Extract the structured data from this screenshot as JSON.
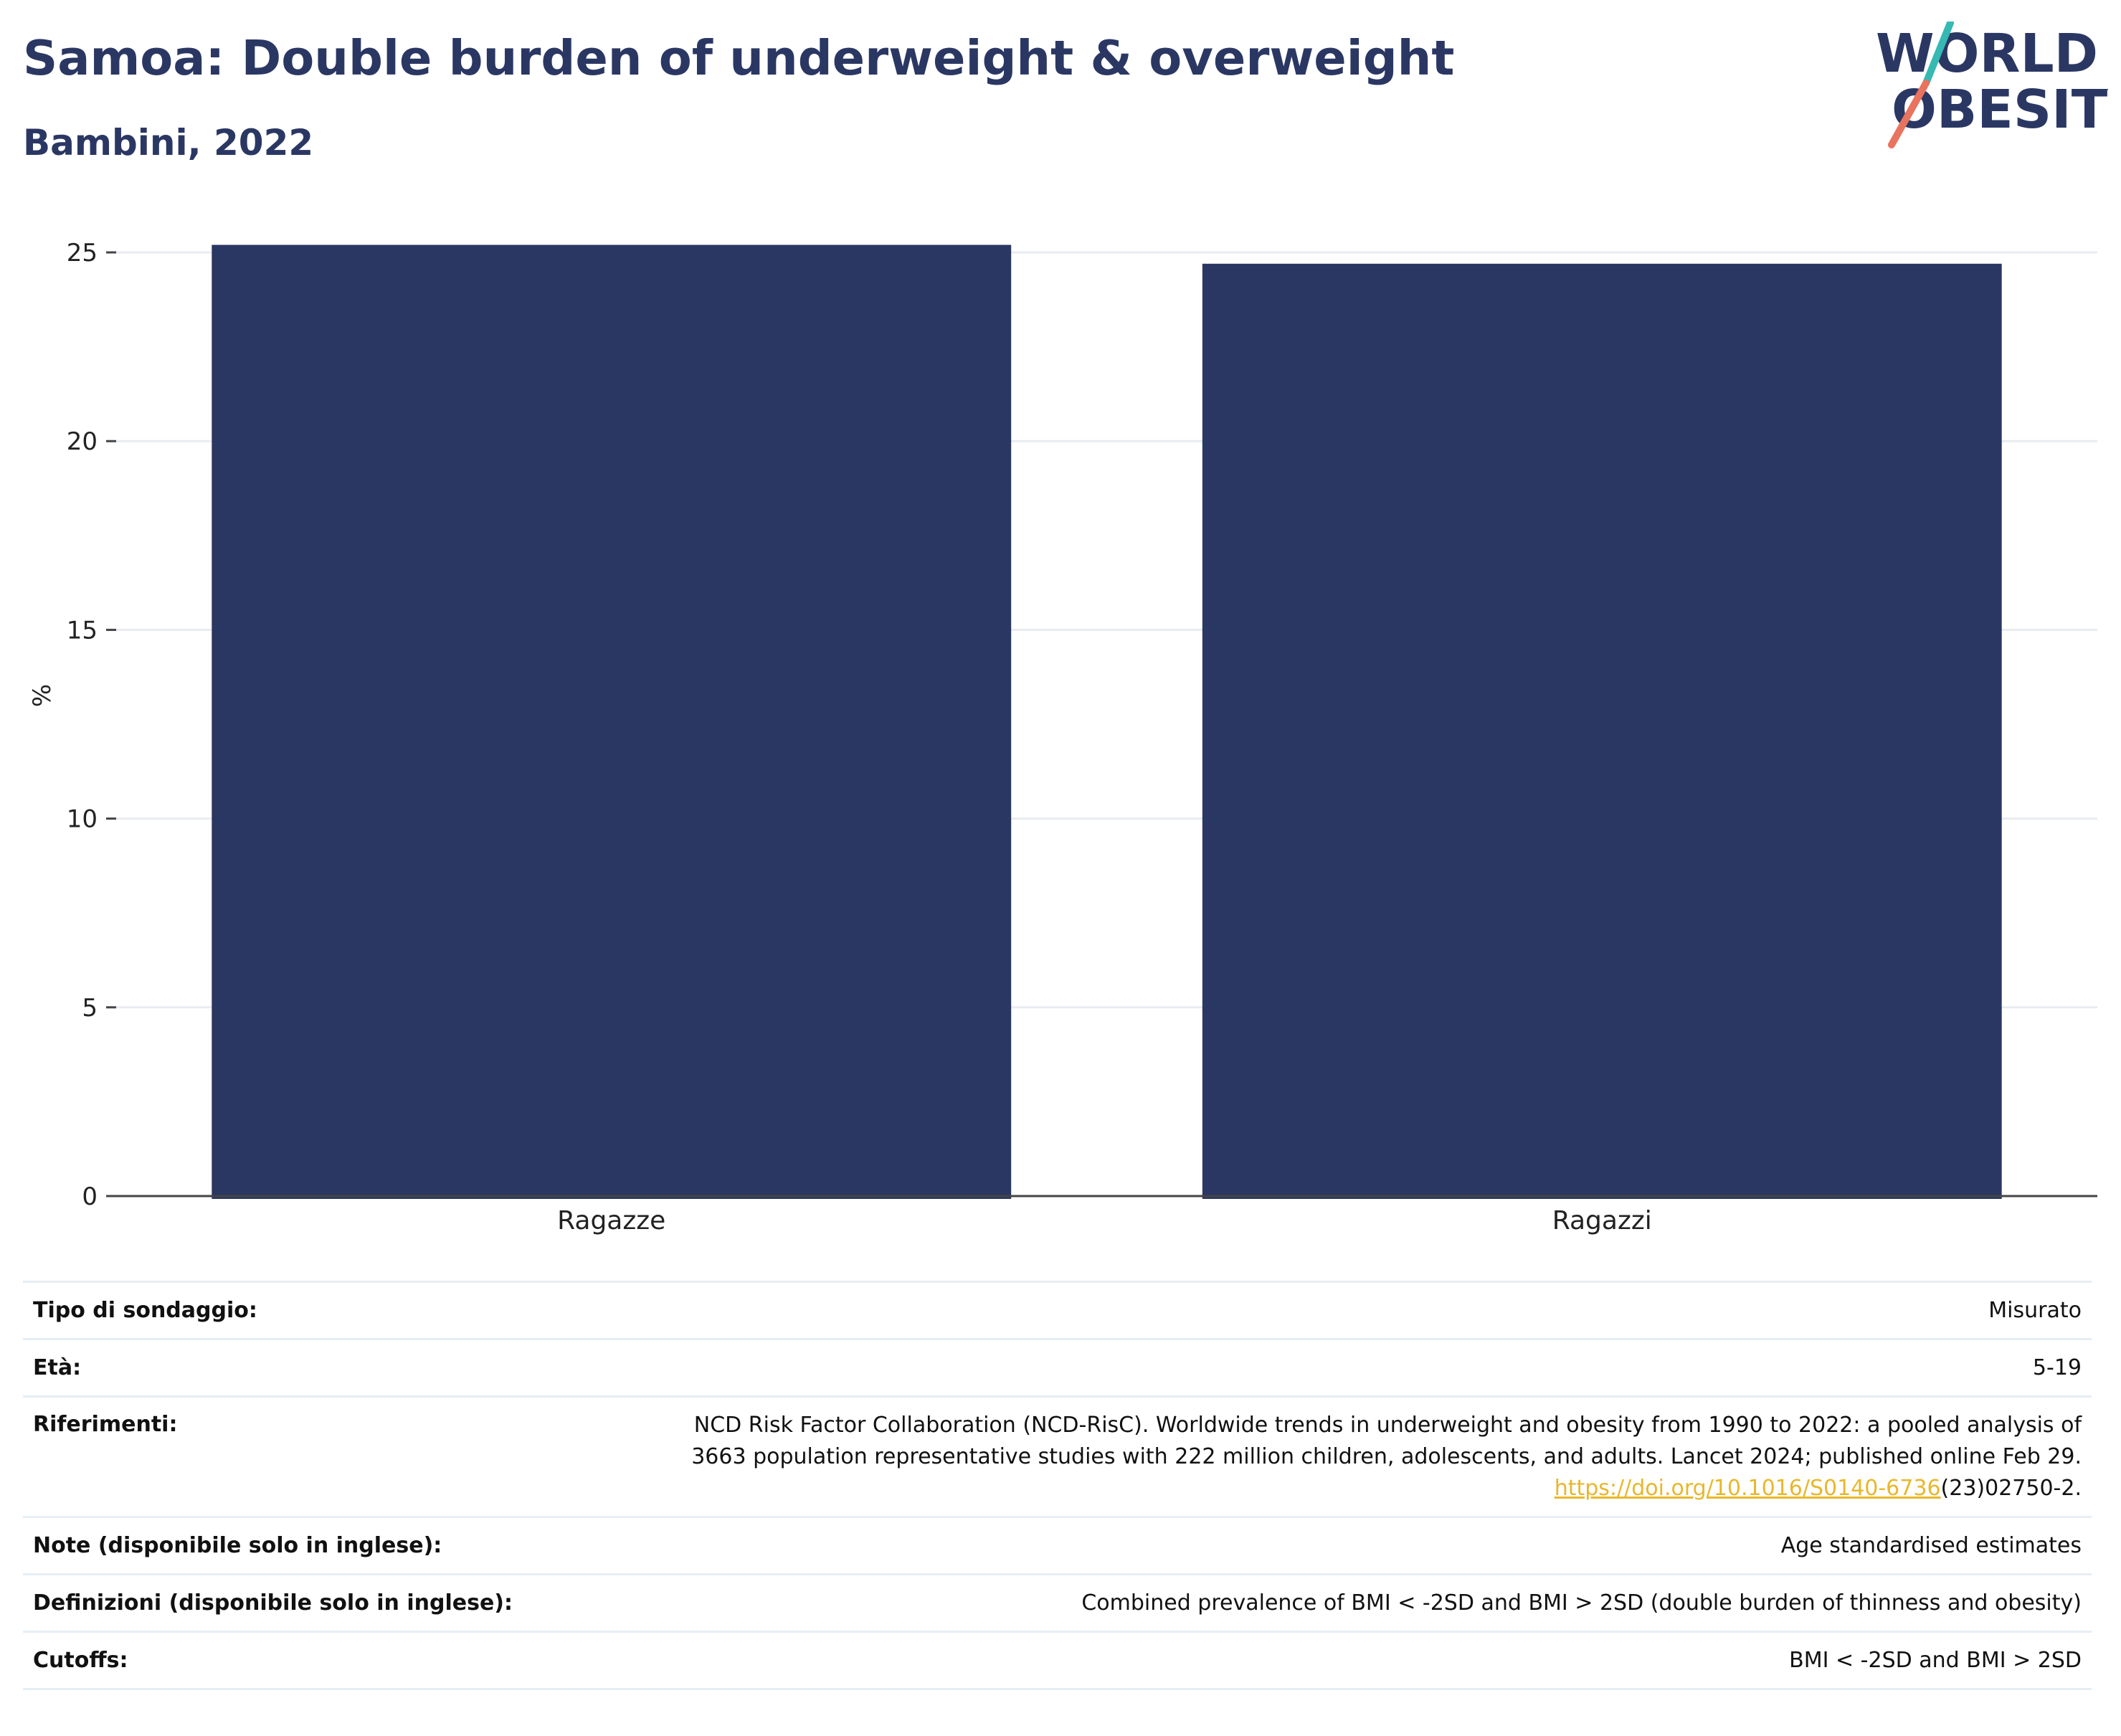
{
  "header": {
    "title": "Samoa: Double burden of underweight & overweight",
    "subtitle": "Bambini, 2022"
  },
  "logo": {
    "line1": "WORLD",
    "line2": "OBESITY",
    "colors": {
      "text": "#2b3763",
      "slash_top": "#36b9b3",
      "slash_bottom": "#e8735e"
    }
  },
  "chart_data": {
    "type": "bar",
    "categories": [
      "Ragazze",
      "Ragazzi"
    ],
    "values": [
      25.2,
      24.7
    ],
    "ylabel": "%",
    "ylim": [
      0,
      25
    ],
    "yticks": [
      0,
      5,
      10,
      15,
      20,
      25
    ],
    "grid": true,
    "bar_color": "#2b3763"
  },
  "meta": {
    "rows": [
      {
        "key": "Tipo di sondaggio:",
        "value": "Misurato"
      },
      {
        "key": "Età:",
        "value": "5-19"
      },
      {
        "key": "Riferimenti:",
        "value_line1": "NCD Risk Factor Collaboration (NCD-RisC). Worldwide trends in underweight and obesity from 1990 to 2022: a pooled analysis of",
        "value_line2": "3663 population representative studies with 222 million children, adolescents, and adults. Lancet 2024; published online Feb 29.",
        "link": "https://doi.org/10.1016/S0140-6736",
        "link_suffix": "(23)02750-2."
      },
      {
        "key": "Note (disponibile solo in inglese):",
        "value": "Age standardised estimates"
      },
      {
        "key": "Definizioni (disponibile solo in inglese):",
        "value": "Combined prevalence of BMI < -2SD and BMI > 2SD (double burden of thinness and obesity)"
      },
      {
        "key": "Cutoffs:",
        "value": "BMI < -2SD and BMI > 2SD"
      }
    ]
  }
}
